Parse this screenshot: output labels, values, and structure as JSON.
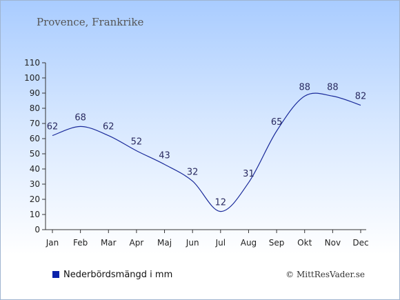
{
  "title": "Provence, Frankrike",
  "legend": {
    "label": "Nederbördsmängd i mm",
    "color": "#0a22aa"
  },
  "copyright": "© MittResVader.se",
  "chart_data": {
    "type": "line",
    "categories": [
      "Jan",
      "Feb",
      "Mar",
      "Apr",
      "Maj",
      "Jun",
      "Jul",
      "Aug",
      "Sep",
      "Okt",
      "Nov",
      "Dec"
    ],
    "series": [
      {
        "name": "Nederbördsmängd i mm",
        "values": [
          62,
          68,
          62,
          52,
          43,
          32,
          12,
          31,
          65,
          88,
          88,
          82
        ]
      }
    ],
    "ylim": [
      0,
      110
    ],
    "yticks": [
      0,
      10,
      20,
      30,
      40,
      50,
      60,
      70,
      80,
      90,
      100,
      110
    ],
    "line_color": "#1a2a9a",
    "grid": false,
    "legend_position": "bottom-left"
  }
}
